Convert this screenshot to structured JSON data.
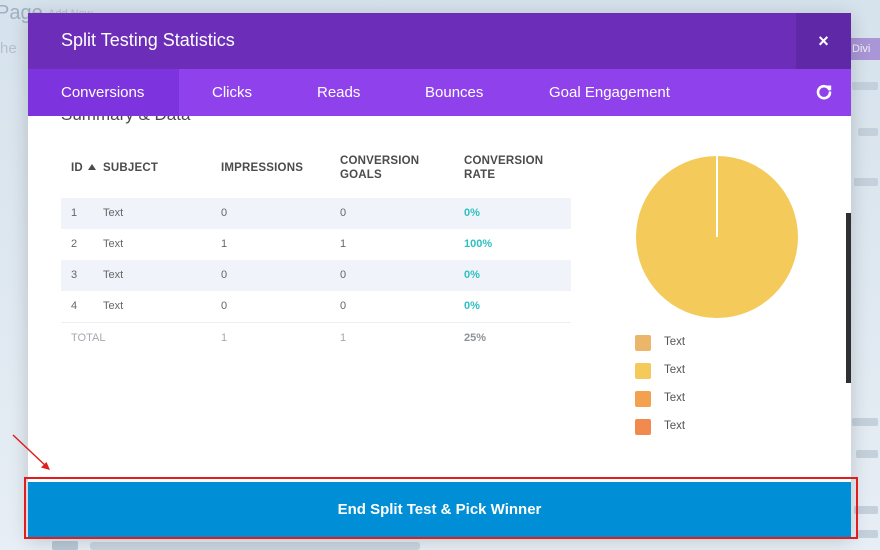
{
  "background": {
    "page_title": "Page",
    "page_link": "Add New",
    "side_text": "he",
    "right_tag": "Divi"
  },
  "modal": {
    "title": "Split Testing Statistics",
    "close_label": "×",
    "tabs": [
      {
        "label": "Conversions",
        "active": true
      },
      {
        "label": "Clicks",
        "active": false
      },
      {
        "label": "Reads",
        "active": false
      },
      {
        "label": "Bounces",
        "active": false
      },
      {
        "label": "Goal Engagement",
        "active": false
      }
    ],
    "refresh_icon": "refresh-icon",
    "section_heading": "Summary & Data",
    "table": {
      "headers": {
        "id": "ID",
        "subject": "SUBJECT",
        "impressions": "IMPRESSIONS",
        "conversion_goals_line1": "CONVERSION",
        "conversion_goals_line2": "GOALS",
        "conversion_rate_line1": "CONVERSION",
        "conversion_rate_line2": "RATE"
      },
      "sort_icon": "sort-asc-icon",
      "rows": [
        {
          "id": "1",
          "subject": "Text",
          "impressions": "0",
          "goals": "0",
          "rate": "0%"
        },
        {
          "id": "2",
          "subject": "Text",
          "impressions": "1",
          "goals": "1",
          "rate": "100%"
        },
        {
          "id": "3",
          "subject": "Text",
          "impressions": "0",
          "goals": "0",
          "rate": "0%"
        },
        {
          "id": "4",
          "subject": "Text",
          "impressions": "0",
          "goals": "0",
          "rate": "0%"
        }
      ],
      "total": {
        "label": "TOTAL",
        "impressions": "1",
        "goals": "1",
        "rate": "25%"
      }
    },
    "legend": [
      {
        "label": "Text",
        "color": "#ebb56a"
      },
      {
        "label": "Text",
        "color": "#f4cb5a"
      },
      {
        "label": "Text",
        "color": "#f4a14f"
      },
      {
        "label": "Text",
        "color": "#f08a4f"
      }
    ],
    "cta_label": "End Split Test & Pick Winner"
  },
  "colors": {
    "header": "#6c2eb9",
    "tabs": "#8f42ec",
    "active_tab": "#7d33de",
    "cta": "#008fd6",
    "rate": "#2ec0c2",
    "highlight": "#e11d1d"
  }
}
